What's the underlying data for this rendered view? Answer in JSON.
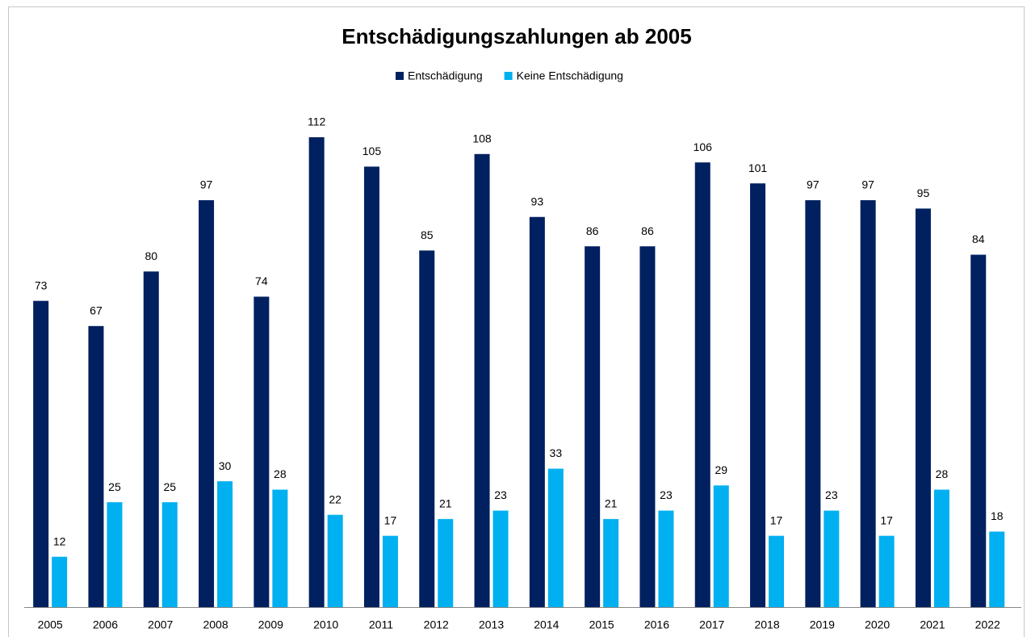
{
  "chart_data": {
    "type": "bar",
    "title": "Entschädigungszahlungen ab 2005",
    "categories": [
      "2005",
      "2006",
      "2007",
      "2008",
      "2009",
      "2010",
      "2011",
      "2012",
      "2013",
      "2014",
      "2015",
      "2016",
      "2017",
      "2018",
      "2019",
      "2020",
      "2021",
      "2022"
    ],
    "series": [
      {
        "name": "Entschädigung",
        "color": "#002060",
        "values": [
          73,
          67,
          80,
          97,
          74,
          112,
          105,
          85,
          108,
          93,
          86,
          86,
          106,
          101,
          97,
          97,
          95,
          84
        ]
      },
      {
        "name": "Keine Entschädigung",
        "color": "#00b0f0",
        "values": [
          12,
          25,
          25,
          30,
          28,
          22,
          17,
          21,
          23,
          33,
          21,
          23,
          29,
          17,
          23,
          17,
          28,
          18
        ]
      }
    ]
  }
}
